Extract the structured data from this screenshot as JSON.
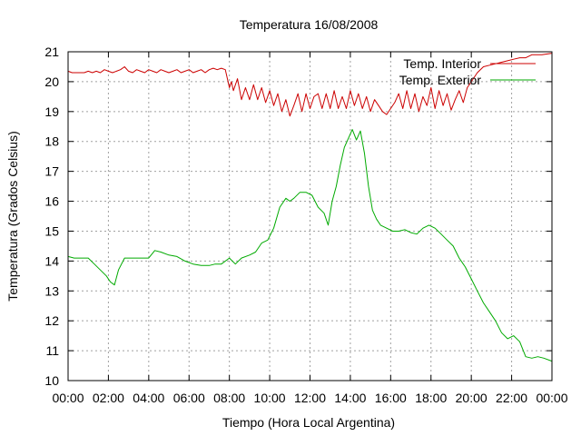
{
  "chart_data": {
    "type": "line",
    "title": "Temperatura 16/08/2008",
    "xlabel": "Tiempo (Hora Local Argentina)",
    "ylabel": "Temperatura (Grados Celsius)",
    "xlim": [
      0,
      24
    ],
    "ylim": [
      10,
      21
    ],
    "x_ticks": [
      "00:00",
      "02:00",
      "04:00",
      "06:00",
      "08:00",
      "10:00",
      "12:00",
      "14:00",
      "16:00",
      "18:00",
      "20:00",
      "22:00",
      "00:00"
    ],
    "y_ticks": [
      "10",
      "11",
      "12",
      "13",
      "14",
      "15",
      "16",
      "17",
      "18",
      "19",
      "20",
      "21"
    ],
    "grid": true,
    "legend_position": "top-right",
    "series": [
      {
        "name": "Temp. Interior",
        "color": "#cc0000",
        "x": [
          0,
          0.2,
          0.5,
          0.8,
          1.0,
          1.2,
          1.4,
          1.6,
          1.8,
          2.0,
          2.2,
          2.4,
          2.6,
          2.8,
          3.0,
          3.2,
          3.4,
          3.6,
          3.8,
          4.0,
          4.2,
          4.4,
          4.6,
          4.8,
          5.0,
          5.2,
          5.4,
          5.6,
          5.8,
          6.0,
          6.2,
          6.4,
          6.6,
          6.8,
          7.0,
          7.2,
          7.4,
          7.6,
          7.8,
          8.0,
          8.1,
          8.2,
          8.4,
          8.6,
          8.8,
          9.0,
          9.2,
          9.4,
          9.6,
          9.8,
          10.0,
          10.2,
          10.4,
          10.6,
          10.8,
          11.0,
          11.2,
          11.4,
          11.6,
          11.8,
          12.0,
          12.2,
          12.4,
          12.6,
          12.8,
          13.0,
          13.2,
          13.4,
          13.6,
          13.8,
          14.0,
          14.2,
          14.4,
          14.6,
          14.8,
          15.0,
          15.2,
          15.4,
          15.6,
          15.8,
          16.0,
          16.2,
          16.4,
          16.6,
          16.8,
          17.0,
          17.2,
          17.4,
          17.6,
          17.8,
          18.0,
          18.2,
          18.4,
          18.6,
          18.8,
          19.0,
          19.2,
          19.4,
          19.6,
          19.8,
          20.0,
          20.3,
          20.6,
          20.9,
          21.2,
          21.5,
          21.8,
          22.1,
          22.4,
          22.7,
          23.0,
          23.5,
          24.0
        ],
        "values": [
          20.35,
          20.3,
          20.3,
          20.3,
          20.35,
          20.3,
          20.35,
          20.3,
          20.4,
          20.35,
          20.3,
          20.35,
          20.4,
          20.5,
          20.35,
          20.3,
          20.4,
          20.35,
          20.3,
          20.4,
          20.35,
          20.3,
          20.4,
          20.35,
          20.3,
          20.35,
          20.4,
          20.3,
          20.35,
          20.4,
          20.3,
          20.35,
          20.4,
          20.3,
          20.4,
          20.45,
          20.4,
          20.45,
          20.4,
          19.8,
          20.0,
          19.7,
          20.1,
          19.4,
          19.8,
          19.4,
          19.9,
          19.4,
          19.8,
          19.3,
          19.7,
          19.2,
          19.6,
          19.0,
          19.4,
          18.85,
          19.2,
          19.6,
          19.0,
          19.6,
          19.1,
          19.5,
          19.6,
          19.1,
          19.6,
          19.1,
          19.7,
          19.1,
          19.5,
          19.1,
          19.7,
          19.2,
          19.6,
          19.1,
          19.5,
          19.0,
          19.4,
          19.2,
          19.0,
          18.9,
          19.1,
          19.3,
          19.6,
          19.1,
          19.7,
          19.1,
          19.6,
          19.0,
          19.5,
          19.2,
          19.8,
          19.1,
          19.7,
          19.2,
          19.6,
          19.05,
          19.4,
          19.7,
          19.3,
          19.8,
          20.0,
          20.3,
          20.5,
          20.55,
          20.6,
          20.65,
          20.7,
          20.75,
          20.8,
          20.8,
          20.9,
          20.9,
          20.95
        ]
      },
      {
        "name": "Temp. Exterior",
        "color": "#00aa00",
        "x": [
          0,
          0.3,
          0.7,
          1.0,
          1.3,
          1.6,
          1.9,
          2.1,
          2.3,
          2.5,
          2.8,
          3.1,
          3.5,
          4.0,
          4.3,
          4.6,
          5.0,
          5.4,
          5.8,
          6.2,
          6.6,
          7.0,
          7.3,
          7.6,
          8.0,
          8.3,
          8.6,
          9.0,
          9.3,
          9.6,
          9.9,
          10.2,
          10.5,
          10.8,
          11.0,
          11.2,
          11.5,
          11.8,
          12.1,
          12.4,
          12.7,
          12.9,
          13.1,
          13.3,
          13.5,
          13.7,
          13.9,
          14.1,
          14.3,
          14.5,
          14.7,
          14.9,
          15.1,
          15.3,
          15.5,
          15.8,
          16.1,
          16.4,
          16.7,
          17.0,
          17.3,
          17.6,
          17.9,
          18.2,
          18.5,
          18.8,
          19.1,
          19.4,
          19.7,
          20.0,
          20.3,
          20.6,
          20.9,
          21.2,
          21.5,
          21.8,
          22.1,
          22.4,
          22.7,
          23.0,
          23.3,
          23.6,
          24.0
        ],
        "values": [
          14.15,
          14.1,
          14.1,
          14.1,
          13.9,
          13.7,
          13.5,
          13.3,
          13.2,
          13.7,
          14.1,
          14.1,
          14.1,
          14.1,
          14.35,
          14.3,
          14.2,
          14.15,
          14.0,
          13.9,
          13.85,
          13.85,
          13.9,
          13.9,
          14.1,
          13.9,
          14.1,
          14.2,
          14.3,
          14.6,
          14.7,
          15.1,
          15.8,
          16.1,
          16.0,
          16.1,
          16.3,
          16.3,
          16.2,
          15.8,
          15.6,
          15.2,
          16.0,
          16.5,
          17.2,
          17.8,
          18.1,
          18.4,
          18.05,
          18.35,
          17.6,
          16.5,
          15.7,
          15.4,
          15.2,
          15.1,
          15.0,
          15.0,
          15.05,
          14.95,
          14.9,
          15.1,
          15.2,
          15.1,
          14.9,
          14.7,
          14.5,
          14.1,
          13.8,
          13.4,
          13.0,
          12.6,
          12.3,
          12.0,
          11.6,
          11.4,
          11.5,
          11.3,
          10.8,
          10.75,
          10.8,
          10.75,
          10.65
        ]
      }
    ]
  }
}
